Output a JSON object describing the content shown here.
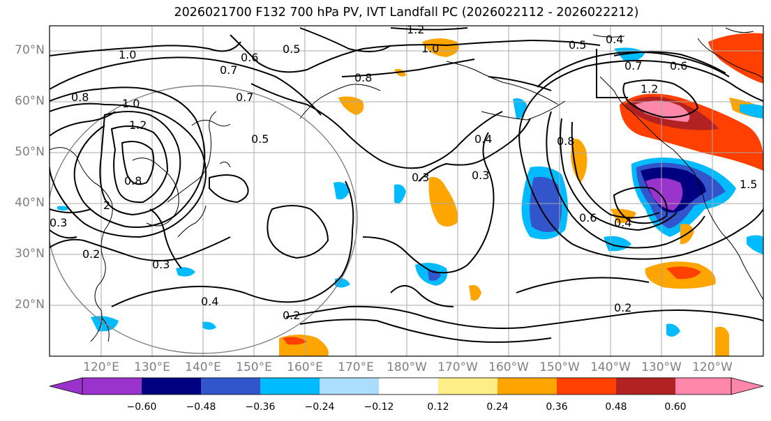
{
  "title": "2026021700 F132 700 hPa PV, IVT Landfall PC (2026022112 - 2026022212)",
  "lat_labels": [
    "70°N",
    "60°N",
    "50°N",
    "40°N",
    "30°N",
    "20°N"
  ],
  "lon_labels": [
    "120°E",
    "130°E",
    "140°E",
    "150°E",
    "160°E",
    "170°E",
    "180°W",
    "170°W",
    "160°W",
    "150°W",
    "140°W",
    "130°W",
    "120°W"
  ],
  "contour_labels": [
    "1.2",
    "1.0",
    "0.6",
    "0.5",
    "0.7",
    "0.8",
    "0.7",
    "0.5",
    "1.0",
    "0.5",
    "0.4",
    "0.7",
    "0.6",
    "1.2",
    "0.8",
    "1.0",
    "1.2",
    "0.8",
    "2",
    "0.3",
    "0.2",
    "0.3",
    "0.4",
    "0.2",
    "0.3",
    "0.4",
    "0.3",
    "0.2",
    "0.8",
    "0.6",
    "0.4",
    "1.5"
  ],
  "colorbar": {
    "ticks": [
      "−0.60",
      "−0.48",
      "−0.36",
      "−0.24",
      "−0.12",
      "0.12",
      "0.24",
      "0.36",
      "0.48",
      "0.60"
    ],
    "colors": [
      "#9933cc",
      "#000080",
      "#3355cc",
      "#00bbff",
      "#aaddff",
      "#ffffff",
      "#ffee88",
      "#ffa500",
      "#ff4000",
      "#b22222",
      "#ff88aa"
    ]
  }
}
